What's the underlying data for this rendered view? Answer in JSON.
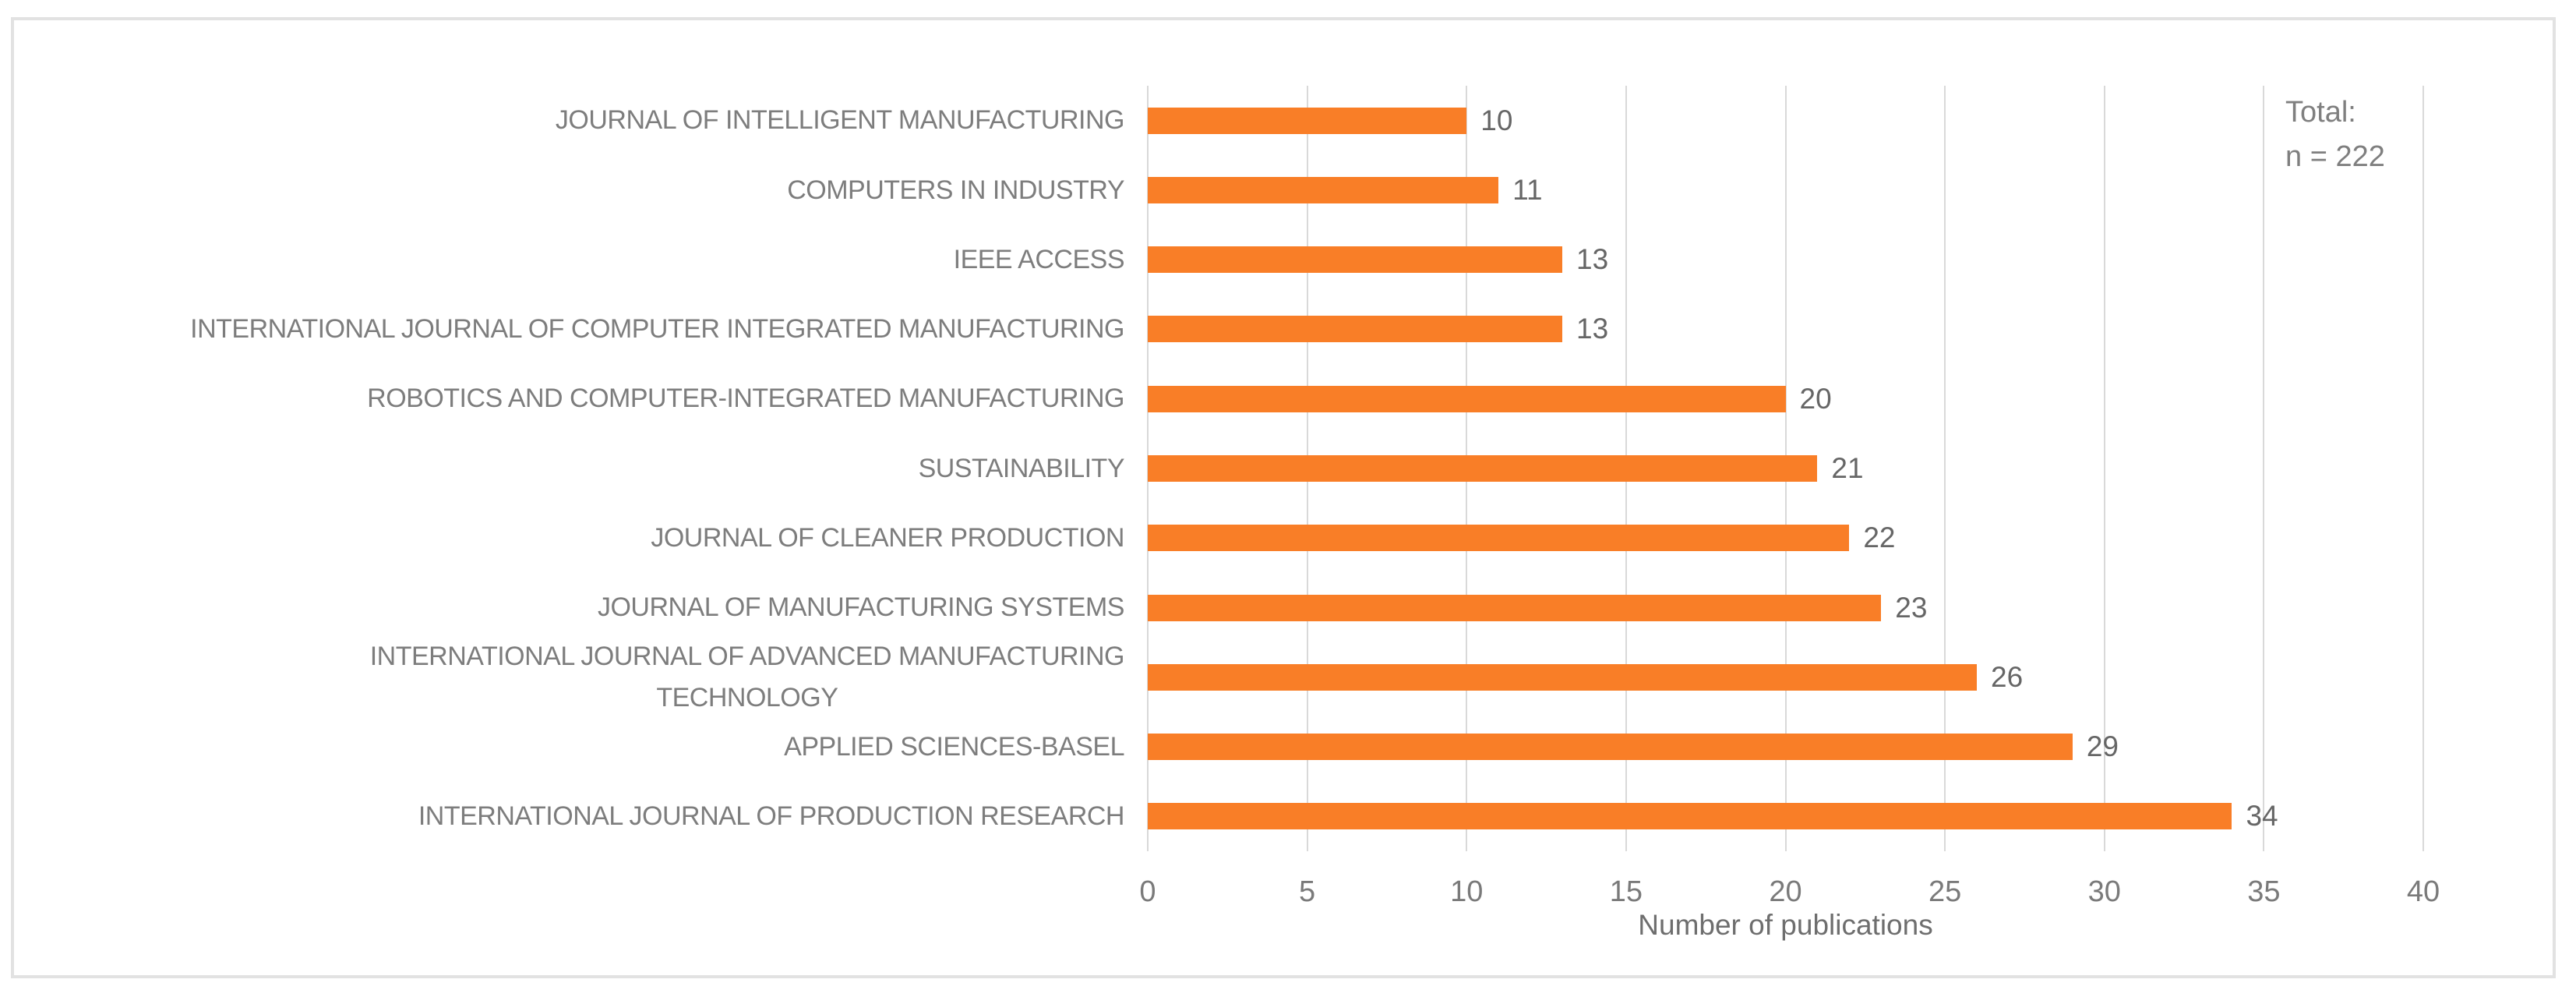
{
  "chart_data": {
    "type": "bar",
    "orientation": "horizontal",
    "title": "",
    "xlabel": "Number of publications",
    "ylabel": "",
    "categories": [
      "JOURNAL OF INTELLIGENT MANUFACTURING",
      "COMPUTERS IN INDUSTRY",
      "IEEE ACCESS",
      "INTERNATIONAL JOURNAL OF COMPUTER INTEGRATED MANUFACTURING",
      "ROBOTICS AND COMPUTER-INTEGRATED MANUFACTURING",
      "SUSTAINABILITY",
      "JOURNAL OF CLEANER PRODUCTION",
      "JOURNAL OF MANUFACTURING SYSTEMS",
      "INTERNATIONAL JOURNAL OF ADVANCED MANUFACTURING\nTECHNOLOGY",
      "APPLIED SCIENCES-BASEL",
      "INTERNATIONAL JOURNAL OF PRODUCTION RESEARCH"
    ],
    "values": [
      10,
      11,
      13,
      13,
      20,
      21,
      22,
      23,
      26,
      29,
      34
    ],
    "xlim": [
      0,
      40
    ],
    "x_ticks": [
      0,
      5,
      10,
      15,
      20,
      25,
      30,
      35,
      40
    ],
    "grid": "vertical",
    "legend": "none",
    "bar_value_labels": [
      "10",
      "11",
      "13",
      "13",
      "20",
      "21",
      "22",
      "23",
      "26",
      "29",
      "34"
    ],
    "annotation": {
      "line1": "Total:",
      "line2": "n = 222"
    },
    "colors": {
      "bar": "#F97E27",
      "gridline": "#D9D9D9",
      "frame_border": "#E2E2E2",
      "category_text": "#7D7D7D",
      "value_text": "#666666",
      "tick_text": "#7A7A7A",
      "axis_title_text": "#6E6E6E",
      "annotation_text": "#7F7F7F"
    }
  }
}
